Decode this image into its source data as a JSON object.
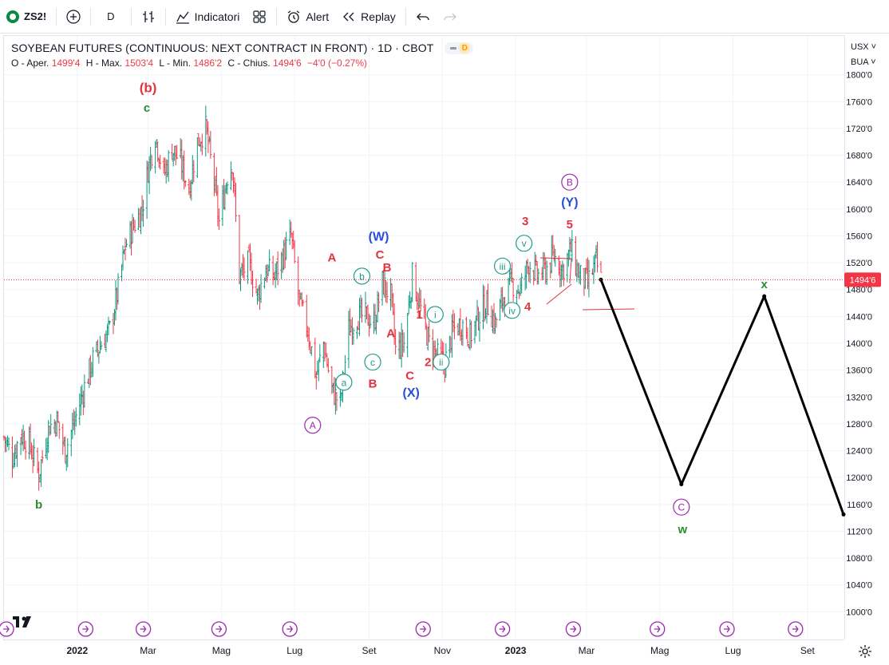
{
  "toolbar": {
    "symbol": "ZS2!",
    "interval": "D",
    "indicators_label": "Indicatori",
    "alert_label": "Alert",
    "replay_label": "Replay"
  },
  "legend": {
    "title": "SOYBEAN FUTURES (CONTINUOUS: NEXT CONTRACT IN FRONT) · 1D · CBOT",
    "interval_badge": "D",
    "open_label": "O - Aper.",
    "open_value": "1499'4",
    "high_label": "H - Max.",
    "high_value": "1503'4",
    "low_label": "L - Min.",
    "low_value": "1486'2",
    "close_label": "C - Chius.",
    "close_value": "1494'6",
    "change_value": "−4'0 (−0.27%)"
  },
  "axis": {
    "currency": "USX",
    "unit": "BUA",
    "last_price_label": "1494'6"
  },
  "colors": {
    "up": "#089981",
    "down": "#f23645",
    "wave_red": "#e0343e",
    "wave_green": "#2e8b2e",
    "wave_teal": "#1a9e8c",
    "wave_blue": "#2a4fd6",
    "wave_purple": "#9c27b0",
    "projection": "#000000",
    "last_price_bg": "#f23645"
  },
  "chart_data": {
    "type": "candlestick",
    "title": "SOYBEAN FUTURES (CONTINUOUS: NEXT CONTRACT IN FRONT) · 1D · CBOT",
    "ylim": [
      960,
      1840
    ],
    "y_ticks": [
      "1800'0",
      "1760'0",
      "1720'0",
      "1680'0",
      "1640'0",
      "1600'0",
      "1560'0",
      "1520'0",
      "1480'0",
      "1440'0",
      "1400'0",
      "1360'0",
      "1320'0",
      "1280'0",
      "1240'0",
      "1200'0",
      "1160'0",
      "1120'0",
      "1080'0",
      "1040'0",
      "1000'0"
    ],
    "y_tick_values": [
      1800,
      1760,
      1720,
      1680,
      1640,
      1600,
      1560,
      1520,
      1480,
      1440,
      1400,
      1360,
      1320,
      1280,
      1240,
      1200,
      1160,
      1120,
      1080,
      1040,
      1000
    ],
    "x_ticks": [
      {
        "label": "2022",
        "date": "2022-01-01",
        "bold": true
      },
      {
        "label": "Mar",
        "date": "2022-03-01"
      },
      {
        "label": "Mag",
        "date": "2022-05-01"
      },
      {
        "label": "Lug",
        "date": "2022-07-01"
      },
      {
        "label": "Set",
        "date": "2022-09-01"
      },
      {
        "label": "Nov",
        "date": "2022-11-01"
      },
      {
        "label": "2023",
        "date": "2023-01-01",
        "bold": true
      },
      {
        "label": "Mar",
        "date": "2023-03-01"
      },
      {
        "label": "Mag",
        "date": "2023-05-01"
      },
      {
        "label": "Lug",
        "date": "2023-07-01"
      },
      {
        "label": "Set",
        "date": "2023-09-01"
      }
    ],
    "x_range": [
      "2021-11-01",
      "2023-10-01"
    ],
    "price_path": [
      [
        "2021-11-01",
        1260
      ],
      [
        "2021-11-08",
        1230
      ],
      [
        "2021-11-15",
        1265
      ],
      [
        "2021-11-22",
        1250
      ],
      [
        "2021-11-30",
        1205
      ],
      [
        "2021-12-08",
        1275
      ],
      [
        "2021-12-15",
        1285
      ],
      [
        "2021-12-22",
        1240
      ],
      [
        "2021-12-30",
        1285
      ],
      [
        "2022-01-07",
        1335
      ],
      [
        "2022-01-14",
        1375
      ],
      [
        "2022-01-21",
        1400
      ],
      [
        "2022-01-28",
        1420
      ],
      [
        "2022-02-04",
        1480
      ],
      [
        "2022-02-10",
        1545
      ],
      [
        "2022-02-17",
        1575
      ],
      [
        "2022-02-24",
        1600
      ],
      [
        "2022-03-01",
        1660
      ],
      [
        "2022-03-07",
        1710
      ],
      [
        "2022-03-14",
        1650
      ],
      [
        "2022-03-21",
        1690
      ],
      [
        "2022-03-28",
        1670
      ],
      [
        "2022-04-04",
        1630
      ],
      [
        "2022-04-11",
        1700
      ],
      [
        "2022-04-18",
        1720
      ],
      [
        "2022-04-25",
        1640
      ],
      [
        "2022-04-29",
        1580
      ],
      [
        "2022-05-06",
        1650
      ],
      [
        "2022-05-10",
        1670
      ],
      [
        "2022-05-16",
        1500
      ],
      [
        "2022-05-24",
        1520
      ],
      [
        "2022-05-31",
        1470
      ],
      [
        "2022-06-07",
        1510
      ],
      [
        "2022-06-14",
        1500
      ],
      [
        "2022-06-21",
        1530
      ],
      [
        "2022-06-28",
        1560
      ],
      [
        "2022-07-05",
        1460
      ],
      [
        "2022-07-12",
        1420
      ],
      [
        "2022-07-19",
        1350
      ],
      [
        "2022-07-25",
        1400
      ],
      [
        "2022-08-01",
        1330
      ],
      [
        "2022-08-08",
        1310
      ],
      [
        "2022-08-15",
        1420
      ],
      [
        "2022-08-22",
        1440
      ],
      [
        "2022-08-29",
        1440
      ],
      [
        "2022-09-05",
        1430
      ],
      [
        "2022-09-12",
        1490
      ],
      [
        "2022-09-19",
        1470
      ],
      [
        "2022-09-23",
        1390
      ],
      [
        "2022-09-30",
        1400
      ],
      [
        "2022-10-07",
        1500
      ],
      [
        "2022-10-14",
        1450
      ],
      [
        "2022-10-21",
        1400
      ],
      [
        "2022-10-28",
        1380
      ],
      [
        "2022-11-03",
        1370
      ],
      [
        "2022-11-10",
        1420
      ],
      [
        "2022-11-17",
        1430
      ],
      [
        "2022-11-24",
        1410
      ],
      [
        "2022-12-01",
        1440
      ],
      [
        "2022-12-08",
        1460
      ],
      [
        "2022-12-15",
        1430
      ],
      [
        "2022-12-22",
        1470
      ],
      [
        "2022-12-29",
        1490
      ],
      [
        "2023-01-05",
        1480
      ],
      [
        "2023-01-12",
        1520
      ],
      [
        "2023-01-19",
        1500
      ],
      [
        "2023-01-26",
        1510
      ],
      [
        "2023-02-02",
        1530
      ],
      [
        "2023-02-09",
        1510
      ],
      [
        "2023-02-16",
        1540
      ],
      [
        "2023-02-23",
        1500
      ],
      [
        "2023-03-02",
        1490
      ],
      [
        "2023-03-09",
        1520
      ],
      [
        "2023-03-13",
        1494.75
      ]
    ],
    "projection": [
      {
        "date": "2023-03-13",
        "price": 1494.75
      },
      {
        "date": "2023-05-19",
        "price": 1190
      },
      {
        "date": "2023-07-27",
        "price": 1470
      },
      {
        "date": "2023-10-01",
        "price": 1145
      }
    ],
    "last_price": 1494.75,
    "wave_labels": [
      {
        "text": "(b)",
        "date": "2022-03-01",
        "price": 1780,
        "color": "red",
        "size": 17
      },
      {
        "text": "c",
        "date": "2022-02-28",
        "price": 1751,
        "color": "green"
      },
      {
        "text": "b",
        "date": "2021-11-30",
        "price": 1160,
        "color": "green"
      },
      {
        "text": "A",
        "date": "2022-07-16",
        "price": 1278,
        "color": "purple",
        "circle": true
      },
      {
        "text": "A",
        "date": "2022-08-01",
        "price": 1528,
        "color": "red"
      },
      {
        "text": "a",
        "date": "2022-08-11",
        "price": 1342,
        "color": "teal",
        "circle": true
      },
      {
        "text": "b",
        "date": "2022-08-26",
        "price": 1500,
        "color": "teal",
        "circle": true
      },
      {
        "text": "(W)",
        "date": "2022-09-09",
        "price": 1559,
        "color": "blue",
        "size": 16
      },
      {
        "text": "C",
        "date": "2022-09-10",
        "price": 1532,
        "color": "red"
      },
      {
        "text": "B",
        "date": "2022-09-16",
        "price": 1513,
        "color": "red"
      },
      {
        "text": "A",
        "date": "2022-09-19",
        "price": 1415,
        "color": "red"
      },
      {
        "text": "c",
        "date": "2022-09-04",
        "price": 1372,
        "color": "teal",
        "circle": true
      },
      {
        "text": "B",
        "date": "2022-09-04",
        "price": 1340,
        "color": "red"
      },
      {
        "text": "1",
        "date": "2022-10-13",
        "price": 1443,
        "color": "red"
      },
      {
        "text": "i",
        "date": "2022-10-26",
        "price": 1443,
        "color": "teal",
        "circle": true
      },
      {
        "text": "C",
        "date": "2022-10-05",
        "price": 1352,
        "color": "red"
      },
      {
        "text": "2",
        "date": "2022-10-20",
        "price": 1372,
        "color": "red"
      },
      {
        "text": "ii",
        "date": "2022-10-31",
        "price": 1372,
        "color": "teal",
        "circle": true
      },
      {
        "text": "(X)",
        "date": "2022-10-06",
        "price": 1326,
        "color": "blue",
        "size": 16
      },
      {
        "text": "iii",
        "date": "2022-12-21",
        "price": 1515,
        "color": "teal",
        "circle": true
      },
      {
        "text": "3",
        "date": "2023-01-09",
        "price": 1582,
        "color": "red"
      },
      {
        "text": "v",
        "date": "2023-01-08",
        "price": 1549,
        "color": "teal",
        "circle": true
      },
      {
        "text": "iv",
        "date": "2022-12-29",
        "price": 1449,
        "color": "teal",
        "circle": true
      },
      {
        "text": "4",
        "date": "2023-01-11",
        "price": 1455,
        "color": "red"
      },
      {
        "text": "B",
        "date": "2023-02-15",
        "price": 1640,
        "color": "purple",
        "circle": true
      },
      {
        "text": "(Y)",
        "date": "2023-02-15",
        "price": 1610,
        "color": "blue",
        "size": 16
      },
      {
        "text": "5",
        "date": "2023-02-15",
        "price": 1577,
        "color": "red"
      },
      {
        "text": "C",
        "date": "2023-05-19",
        "price": 1156,
        "color": "purple",
        "circle": true
      },
      {
        "text": "w",
        "date": "2023-05-20",
        "price": 1123,
        "color": "green"
      },
      {
        "text": "x",
        "date": "2023-07-27",
        "price": 1488,
        "color": "green"
      }
    ]
  }
}
